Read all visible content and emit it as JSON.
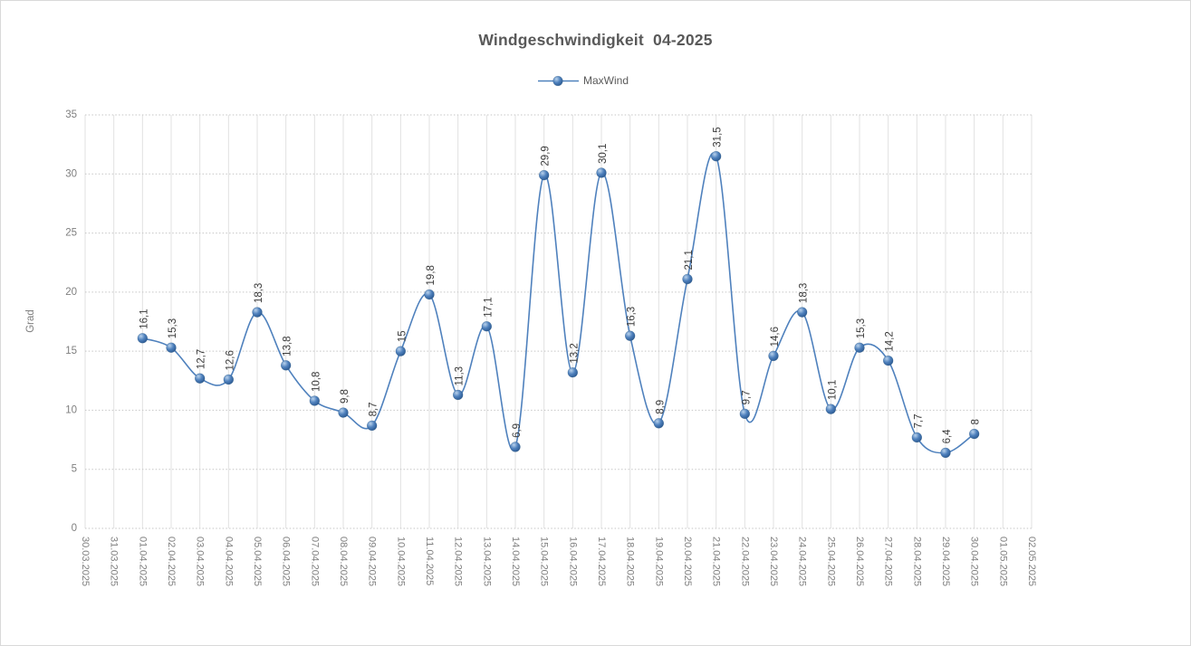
{
  "chart_data": {
    "type": "line",
    "title": "Windgeschwindigkeit  04-2025",
    "ylabel": "Grad",
    "ylim": [
      0,
      35
    ],
    "y_ticks": [
      0,
      5,
      10,
      15,
      20,
      25,
      30,
      35
    ],
    "grid": {
      "horizontal": "dotted",
      "vertical": "solid"
    },
    "legend_position": "top-center",
    "line_style": "smooth",
    "categories": [
      "30.03.2025",
      "31.03.2025",
      "01.04.2025",
      "02.04.2025",
      "03.04.2025",
      "04.04.2025",
      "05.04.2025",
      "06.04.2025",
      "07.04.2025",
      "08.04.2025",
      "09.04.2025",
      "10.04.2025",
      "11.04.2025",
      "12.04.2025",
      "13.04.2025",
      "14.04.2025",
      "15.04.2025",
      "16.04.2025",
      "17.04.2025",
      "18.04.2025",
      "19.04.2025",
      "20.04.2025",
      "21.04.2025",
      "22.04.2025",
      "23.04.2025",
      "24.04.2025",
      "25.04.2025",
      "26.04.2025",
      "27.04.2025",
      "28.04.2025",
      "29.04.2025",
      "30.04.2025",
      "01.05.2025",
      "02.05.2025"
    ],
    "series": [
      {
        "name": "MaxWind",
        "color": "#4f81bd",
        "marker": "sphere-3d",
        "start_category_index": 2,
        "values": [
          16.1,
          15.3,
          12.7,
          12.6,
          18.3,
          13.8,
          10.8,
          9.8,
          8.7,
          15,
          19.8,
          11.3,
          17.1,
          6.9,
          29.9,
          13.2,
          30.1,
          16.3,
          8.9,
          21.1,
          31.5,
          9.7,
          14.6,
          18.3,
          10.1,
          15.3,
          14.2,
          7.7,
          6.4,
          8
        ],
        "labels": [
          "16,1",
          "15,3",
          "12,7",
          "12,6",
          "18,3",
          "13,8",
          "10,8",
          "9,8",
          "8,7",
          "15",
          "19,8",
          "11,3",
          "17,1",
          "6,9",
          "29,9",
          "13,2",
          "30,1",
          "16,3",
          "8,9",
          "21,1",
          "31,5",
          "9,7",
          "14,6",
          "18,3",
          "10,1",
          "15,3",
          "14,2",
          "7,7",
          "6,4",
          "8"
        ]
      }
    ]
  },
  "colors": {
    "title_text": "#595959",
    "legend_text": "#595959",
    "axis_text": "#7f7f7f",
    "data_label_text": "#3a3a3a",
    "grid_horizontal": "#c6c6c6",
    "grid_vertical": "#e1e1e1",
    "series_line": "#4f81bd",
    "marker_light": "#b9d2ec",
    "marker_mid": "#4f81bd",
    "marker_dark": "#1f4e79",
    "chart_border": "#d9d9d9",
    "background": "#ffffff"
  }
}
